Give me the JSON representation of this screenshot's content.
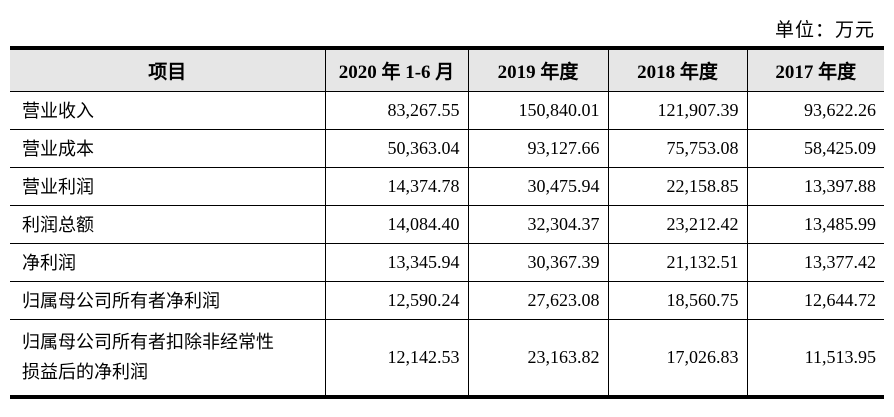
{
  "unit_label": "单位：万元",
  "colors": {
    "header_bg": "#e6e6e6",
    "rule": "#000000",
    "text": "#000000"
  },
  "table": {
    "columns": [
      "项目",
      "2020 年 1-6 月",
      "2019 年度",
      "2018 年度",
      "2017 年度"
    ],
    "rows": [
      {
        "label": "营业收入",
        "values": [
          "83,267.55",
          "150,840.01",
          "121,907.39",
          "93,622.26"
        ]
      },
      {
        "label": "营业成本",
        "values": [
          "50,363.04",
          "93,127.66",
          "75,753.08",
          "58,425.09"
        ]
      },
      {
        "label": "营业利润",
        "values": [
          "14,374.78",
          "30,475.94",
          "22,158.85",
          "13,397.88"
        ]
      },
      {
        "label": "利润总额",
        "values": [
          "14,084.40",
          "32,304.37",
          "23,212.42",
          "13,485.99"
        ]
      },
      {
        "label": "净利润",
        "values": [
          "13,345.94",
          "30,367.39",
          "21,132.51",
          "13,377.42"
        ]
      },
      {
        "label": "归属母公司所有者净利润",
        "values": [
          "12,590.24",
          "27,623.08",
          "18,560.75",
          "12,644.72"
        ]
      },
      {
        "label": "归属母公司所有者扣除非经常性损益后的净利润",
        "values": [
          "12,142.53",
          "23,163.82",
          "17,026.83",
          "11,513.95"
        ]
      }
    ]
  }
}
